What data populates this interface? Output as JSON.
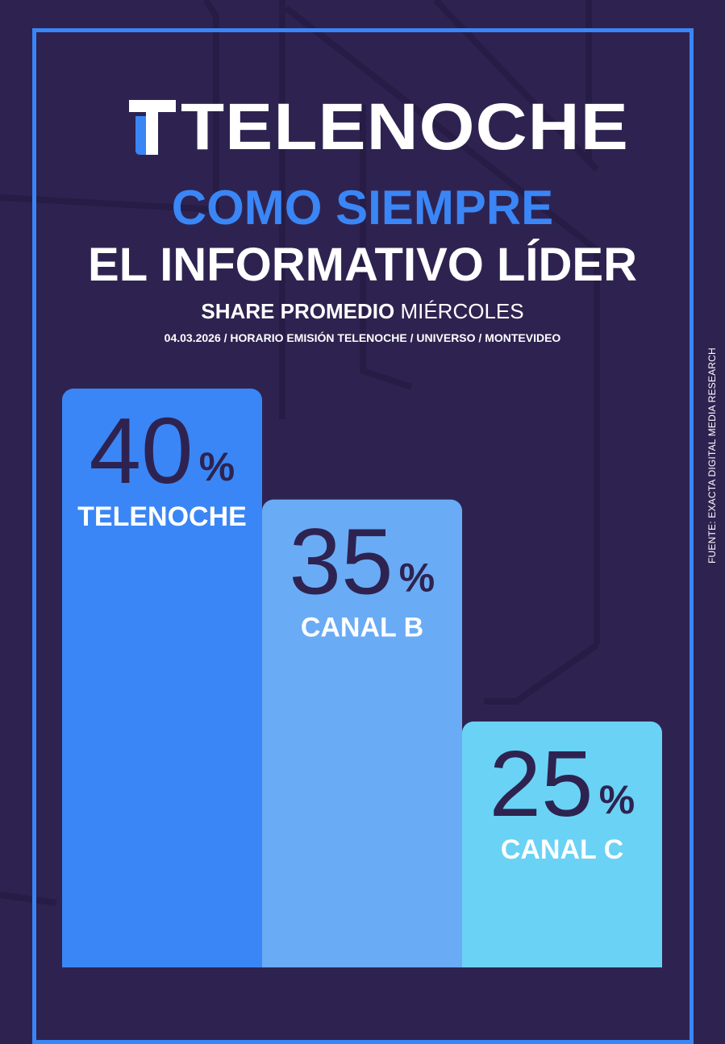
{
  "logo": {
    "text": "TELENOCHE"
  },
  "headline": {
    "line1": "COMO SIEMPRE",
    "line2": "EL INFORMATIVO LÍDER"
  },
  "subtitle": {
    "bold": "SHARE PROMEDIO",
    "normal": "MIÉRCOLES"
  },
  "note": "04.03.2026 / HORARIO EMISIÓN TELENOCHE / UNIVERSO / MONTEVIDEO",
  "source": "FUENTE: EXACTA DIGITAL MEDIA RESEARCH",
  "colors": {
    "background": "#2e2350",
    "frame": "#3a86f6",
    "accent": "#3a86f6",
    "text_dark": "#2e2350"
  },
  "chart_data": {
    "type": "bar",
    "categories": [
      "TELENOCHE",
      "CANAL B",
      "CANAL C"
    ],
    "values": [
      40,
      35,
      25
    ],
    "unit": "%",
    "value_labels": [
      "40",
      "35",
      "25"
    ],
    "bar_colors": [
      "#3a86f6",
      "#6aabf6",
      "#6ad2f5"
    ],
    "ylim": [
      0,
      40
    ],
    "grid": false,
    "legend": "none"
  }
}
